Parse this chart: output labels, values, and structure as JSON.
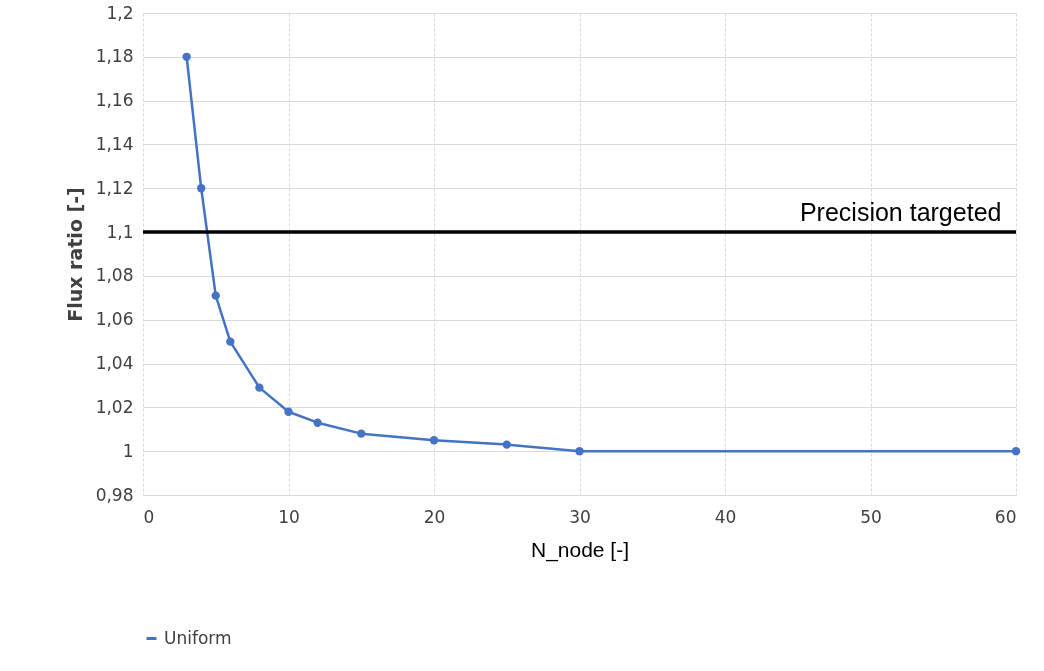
{
  "chart_data": {
    "type": "line",
    "xlabel": "N_node [-]",
    "ylabel": "Flux ratio [-]",
    "x": [
      3,
      4,
      5,
      6,
      8,
      10,
      12,
      15,
      20,
      25,
      30,
      60
    ],
    "series": [
      {
        "name": "Uniform",
        "color": "#4472c4",
        "values": [
          1.18,
          1.12,
          1.071,
          1.05,
          1.029,
          1.018,
          1.013,
          1.008,
          1.005,
          1.003,
          1.0,
          1.0
        ]
      }
    ],
    "xlim": [
      0,
      60
    ],
    "xticks": [
      0,
      10,
      20,
      30,
      40,
      50,
      60
    ],
    "ylim": [
      0.98,
      1.2
    ],
    "yticks": [
      {
        "value": 0.98,
        "label": "0,98"
      },
      {
        "value": 1,
        "label": "1"
      },
      {
        "value": 1.02,
        "label": "1,02"
      },
      {
        "value": 1.04,
        "label": "1,04"
      },
      {
        "value": 1.06,
        "label": "1,06"
      },
      {
        "value": 1.08,
        "label": "1,08"
      },
      {
        "value": 1.1,
        "label": "1,1"
      },
      {
        "value": 1.12,
        "label": "1,12"
      },
      {
        "value": 1.14,
        "label": "1,14"
      },
      {
        "value": 1.16,
        "label": "1,16"
      },
      {
        "value": 1.18,
        "label": "1,18"
      },
      {
        "value": 1.2,
        "label": "1,2"
      }
    ],
    "ref_lines": [
      {
        "axis": "y",
        "value": 1.1,
        "label": "Precision targeted",
        "color": "#000000"
      }
    ],
    "grid": true,
    "legend": "bottom",
    "marker": "circle",
    "line_style": "solid"
  }
}
